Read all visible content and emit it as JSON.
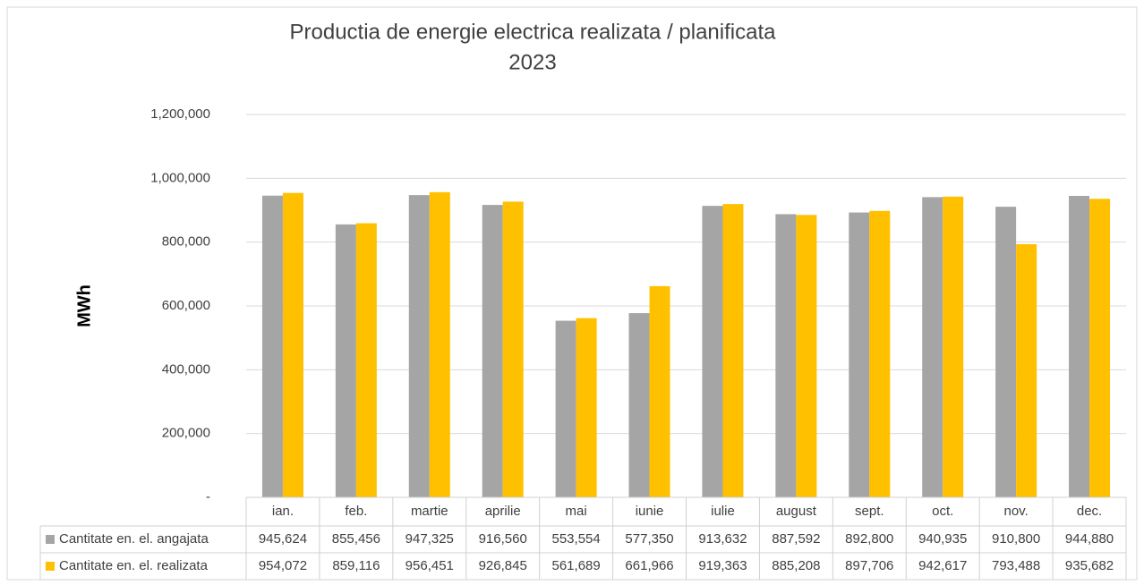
{
  "chart_data": {
    "type": "bar",
    "title": "Productia de energie electrica realizata / planificata",
    "subtitle": "2023",
    "y_label": "MWh",
    "categories": [
      "ian.",
      "feb.",
      "martie",
      "aprilie",
      "mai",
      "iunie",
      "iulie",
      "august",
      "sept.",
      "oct.",
      "nov.",
      "dec."
    ],
    "series": [
      {
        "name": "Cantitate en. el. angajata",
        "color": "#a5a5a5",
        "values": [
          945624,
          855456,
          947325,
          916560,
          553554,
          577350,
          913632,
          887592,
          892800,
          940935,
          910800,
          944880
        ],
        "value_labels": [
          "945,624",
          "855,456",
          "947,325",
          "916,560",
          "553,554",
          "577,350",
          "913,632",
          "887,592",
          "892,800",
          "940,935",
          "910,800",
          "944,880"
        ]
      },
      {
        "name": "Cantitate en. el. realizata",
        "color": "#ffc000",
        "values": [
          954072,
          859116,
          956451,
          926845,
          561689,
          661966,
          919363,
          885208,
          897706,
          942617,
          793488,
          935682
        ],
        "value_labels": [
          "954,072",
          "859,116",
          "956,451",
          "926,845",
          "561,689",
          "661,966",
          "919,363",
          "885,208",
          "897,706",
          "942,617",
          "793,488",
          "935,682"
        ]
      }
    ],
    "ylim": [
      0,
      1200000
    ],
    "yticks": [
      {
        "value": 0,
        "label": "-"
      },
      {
        "value": 200000,
        "label": "200,000"
      },
      {
        "value": 400000,
        "label": "400,000"
      },
      {
        "value": 600000,
        "label": "600,000"
      },
      {
        "value": 800000,
        "label": "800,000"
      },
      {
        "value": 1000000,
        "label": "1,000,000"
      },
      {
        "value": 1200000,
        "label": "1,200,000"
      }
    ],
    "grid": true,
    "data_table": true
  }
}
